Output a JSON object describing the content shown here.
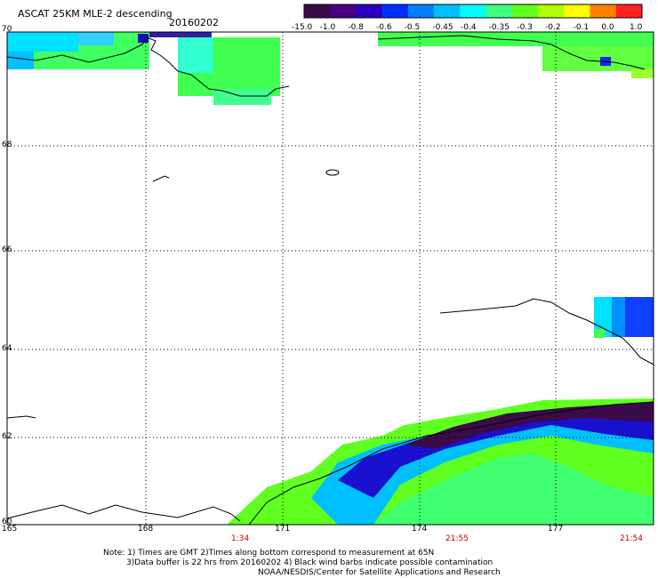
{
  "header": {
    "title": "ASCAT 25KM MLE-2 descending",
    "date": "20160202"
  },
  "colorbar": {
    "labels": [
      "-15.0",
      "-1.0",
      "-0.8",
      "-0.6",
      "-0.5",
      "-0.45",
      "-0.4",
      "-0.35",
      "-0.3",
      "-0.2",
      "-0.1",
      "0.0",
      "1.0"
    ],
    "colors": [
      "#3a0a4a",
      "#4b0082",
      "#2a00c0",
      "#0030ff",
      "#0080ff",
      "#00c0ff",
      "#00ffff",
      "#40ff80",
      "#60ff20",
      "#b0ff00",
      "#ffff00",
      "#ff8000",
      "#ff2020"
    ]
  },
  "axes": {
    "lat_labels": [
      "70",
      "68",
      "66",
      "64",
      "62",
      "60"
    ],
    "lon_labels": [
      "165",
      "168",
      "171",
      "174",
      "177"
    ]
  },
  "times": [
    "1:34",
    "21:55",
    "21:54"
  ],
  "notes": [
    "Note: 1) Times are GMT 2)Times along bottom correspond to measurement at 65N",
    "3)Data buffer is 22 hrs from 20160202 4) Black wind barbs indicate possible contamination",
    "NOAA/NESDIS/Center for Satellite Applications and Research"
  ]
}
